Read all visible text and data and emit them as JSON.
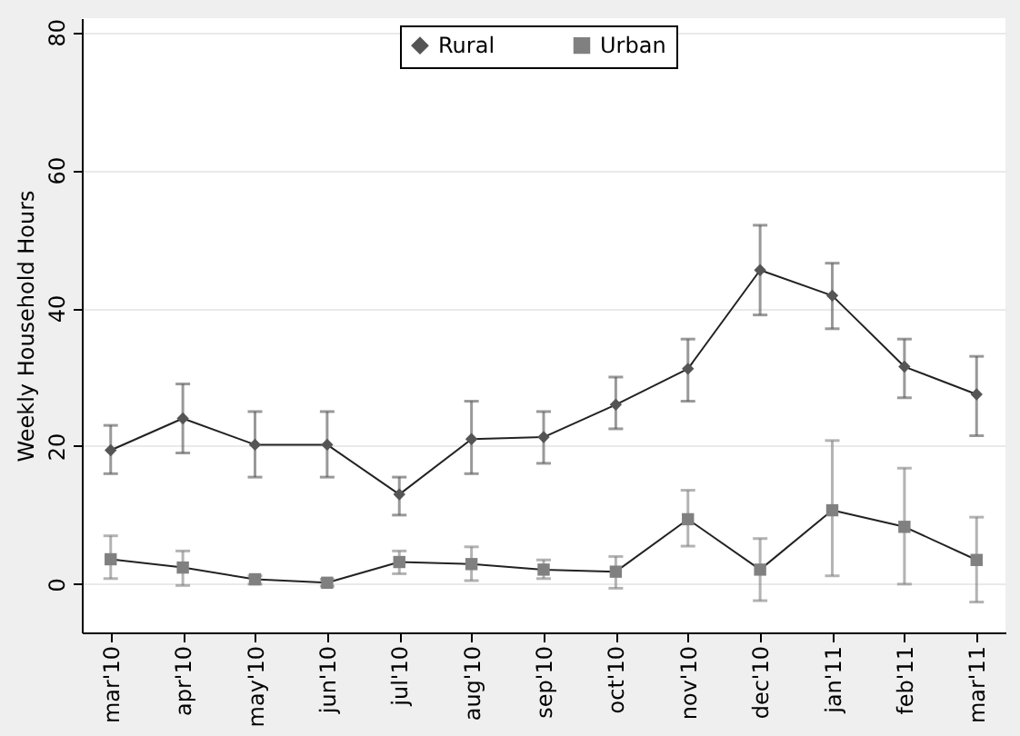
{
  "chart_data": {
    "type": "line",
    "ylabel": "Weekly Household Hours",
    "categories": [
      "mar'10",
      "apr'10",
      "may'10",
      "jun'10",
      "jul'10",
      "aug'10",
      "sep'10",
      "oct'10",
      "nov'10",
      "dec'10",
      "jan'11",
      "feb'11",
      "mar'11"
    ],
    "ylim": [
      -7,
      82
    ],
    "yticks": [
      0,
      20,
      40,
      60,
      80
    ],
    "grid": "y",
    "legend": "top",
    "series": [
      {
        "name": "Rural",
        "color": "#555555",
        "marker": "diamond",
        "values": [
          19.4,
          24,
          20.2,
          20.2,
          13,
          21,
          21.3,
          26,
          31.2,
          45.5,
          41.8,
          31.5,
          27.5
        ],
        "errors": [
          [
            16,
            23
          ],
          [
            19,
            29
          ],
          [
            15.5,
            25
          ],
          [
            15.5,
            25
          ],
          [
            10,
            15.5
          ],
          [
            16,
            26.5
          ],
          [
            17.5,
            25
          ],
          [
            22.5,
            30
          ],
          [
            26.5,
            35.5
          ],
          [
            39,
            52
          ],
          [
            37,
            46.5
          ],
          [
            27,
            35.5
          ],
          [
            21.5,
            33
          ]
        ]
      },
      {
        "name": "Urban",
        "color": "#808080",
        "marker": "square",
        "values": [
          3.6,
          2.4,
          0.7,
          0.2,
          3.2,
          2.9,
          2.1,
          1.8,
          9.4,
          2.1,
          10.7,
          8.3,
          3.5
        ],
        "errors": [
          [
            0.8,
            7
          ],
          [
            -0.2,
            4.8
          ],
          [
            0,
            1.2
          ],
          [
            -0.3,
            0.7
          ],
          [
            1.5,
            4.8
          ],
          [
            0.5,
            5.4
          ],
          [
            0.8,
            3.5
          ],
          [
            -0.6,
            4
          ],
          [
            5.5,
            13.6
          ],
          [
            -2.4,
            6.6
          ],
          [
            1.2,
            20.8
          ],
          [
            0,
            16.8
          ],
          [
            -2.6,
            9.7
          ]
        ]
      }
    ]
  }
}
